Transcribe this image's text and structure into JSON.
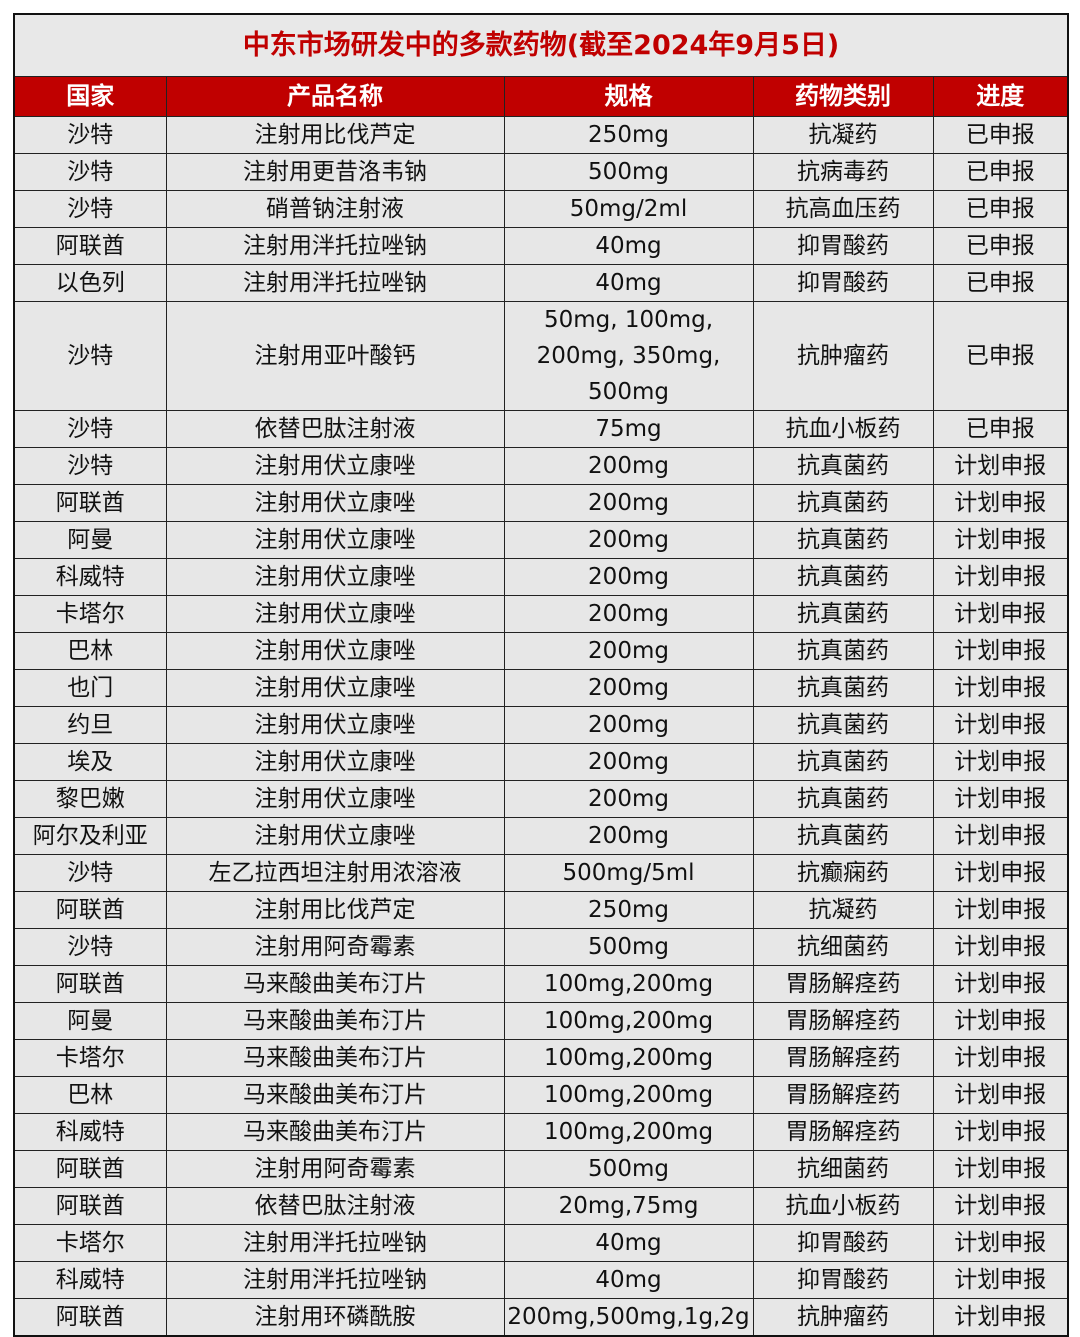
{
  "title": "中东市场研发中的多款药物(截至2024年9月5日)",
  "headers": [
    "国家",
    "产品名称",
    "规格",
    "药物类别",
    "进度"
  ],
  "rows": [
    [
      "沙特",
      "注射用比伐芦定",
      "250mg",
      "抗凝药",
      "已申报"
    ],
    [
      "沙特",
      "注射用更昔洛韦钠",
      "500mg",
      "抗病毒药",
      "已申报"
    ],
    [
      "沙特",
      "硝普钠注射液",
      "50mg/2ml",
      "抗高血压药",
      "已申报"
    ],
    [
      "阿联酋",
      "注射用泮托拉唑钠",
      "40mg",
      "抑胃酸药",
      "已申报"
    ],
    [
      "以色列",
      "注射用泮托拉唑钠",
      "40mg",
      "抑胃酸药",
      "已申报"
    ],
    [
      "沙特",
      "注射用亚叶酸钙",
      "50mg, 100mg,\n200mg, 350mg,\n500mg",
      "抗肿瘤药",
      "已申报"
    ],
    [
      "沙特",
      "依替巴肽注射液",
      "75mg",
      "抗血小板药",
      "已申报"
    ],
    [
      "沙特",
      "注射用伏立康唑",
      "200mg",
      "抗真菌药",
      "计划申报"
    ],
    [
      "阿联酋",
      "注射用伏立康唑",
      "200mg",
      "抗真菌药",
      "计划申报"
    ],
    [
      "阿曼",
      "注射用伏立康唑",
      "200mg",
      "抗真菌药",
      "计划申报"
    ],
    [
      "科威特",
      "注射用伏立康唑",
      "200mg",
      "抗真菌药",
      "计划申报"
    ],
    [
      "卡塔尔",
      "注射用伏立康唑",
      "200mg",
      "抗真菌药",
      "计划申报"
    ],
    [
      "巴林",
      "注射用伏立康唑",
      "200mg",
      "抗真菌药",
      "计划申报"
    ],
    [
      "也门",
      "注射用伏立康唑",
      "200mg",
      "抗真菌药",
      "计划申报"
    ],
    [
      "约旦",
      "注射用伏立康唑",
      "200mg",
      "抗真菌药",
      "计划申报"
    ],
    [
      "埃及",
      "注射用伏立康唑",
      "200mg",
      "抗真菌药",
      "计划申报"
    ],
    [
      "黎巴嫩",
      "注射用伏立康唑",
      "200mg",
      "抗真菌药",
      "计划申报"
    ],
    [
      "阿尔及利亚",
      "注射用伏立康唑",
      "200mg",
      "抗真菌药",
      "计划申报"
    ],
    [
      "沙特",
      "左乙拉西坦注射用浓溶液",
      "500mg/5ml",
      "抗癫痫药",
      "计划申报"
    ],
    [
      "阿联酋",
      "注射用比伐芦定",
      "250mg",
      "抗凝药",
      "计划申报"
    ],
    [
      "沙特",
      "注射用阿奇霉素",
      "500mg",
      "抗细菌药",
      "计划申报"
    ],
    [
      "阿联酋",
      "马来酸曲美布汀片",
      "100mg,200mg",
      "胃肠解痉药",
      "计划申报"
    ],
    [
      "阿曼",
      "马来酸曲美布汀片",
      "100mg,200mg",
      "胃肠解痉药",
      "计划申报"
    ],
    [
      "卡塔尔",
      "马来酸曲美布汀片",
      "100mg,200mg",
      "胃肠解痉药",
      "计划申报"
    ],
    [
      "巴林",
      "马来酸曲美布汀片",
      "100mg,200mg",
      "胃肠解痉药",
      "计划申报"
    ],
    [
      "科威特",
      "马来酸曲美布汀片",
      "100mg,200mg",
      "胃肠解痉药",
      "计划申报"
    ],
    [
      "阿联酋",
      "注射用阿奇霉素",
      "500mg",
      "抗细菌药",
      "计划申报"
    ],
    [
      "阿联酋",
      "依替巴肽注射液",
      "20mg,75mg",
      "抗血小板药",
      "计划申报"
    ],
    [
      "卡塔尔",
      "注射用泮托拉唑钠",
      "40mg",
      "抑胃酸药",
      "计划申报"
    ],
    [
      "科威特",
      "注射用泮托拉唑钠",
      "40mg",
      "抑胃酸药",
      "计划申报"
    ],
    [
      "阿联酋",
      "注射用环磷酰胺",
      "200mg,500mg,1g,2g",
      "抗肿瘤药",
      "计划申报"
    ]
  ],
  "colors": {
    "header_bg": "#c00000",
    "title_text": "#c00000",
    "cell_bg": "#e7e7e7"
  }
}
